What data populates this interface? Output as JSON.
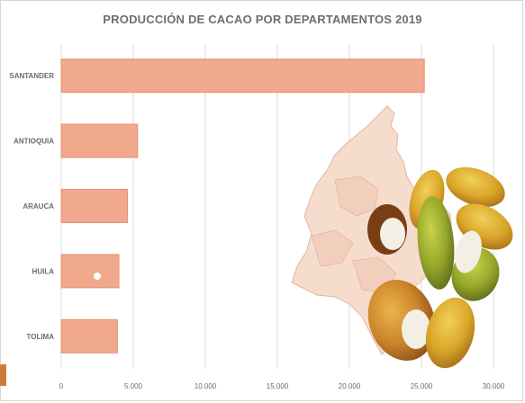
{
  "chart_data": {
    "type": "bar",
    "orientation": "horizontal",
    "title": "PRODUCCIÓN DE CACAO POR DEPARTAMENTOS 2019",
    "categories": [
      "SANTANDER",
      "ANTIOQUIA",
      "ARAUCA",
      "HUILA",
      "TOLIMA"
    ],
    "values": [
      25200,
      5300,
      4600,
      4000,
      3900
    ],
    "xlim": [
      0,
      30000
    ],
    "xticks": [
      "0",
      "5.000",
      "10.000",
      "15.000",
      "20.000",
      "25.000",
      "30.000"
    ],
    "xtick_values": [
      0,
      5000,
      10000,
      15000,
      20000,
      25000,
      30000
    ],
    "grid": true,
    "bar_color": "#f0a98c",
    "bar_border": "#e39373"
  },
  "decoration": {
    "illustration": "colombia-map-with-cacao-pods"
  }
}
